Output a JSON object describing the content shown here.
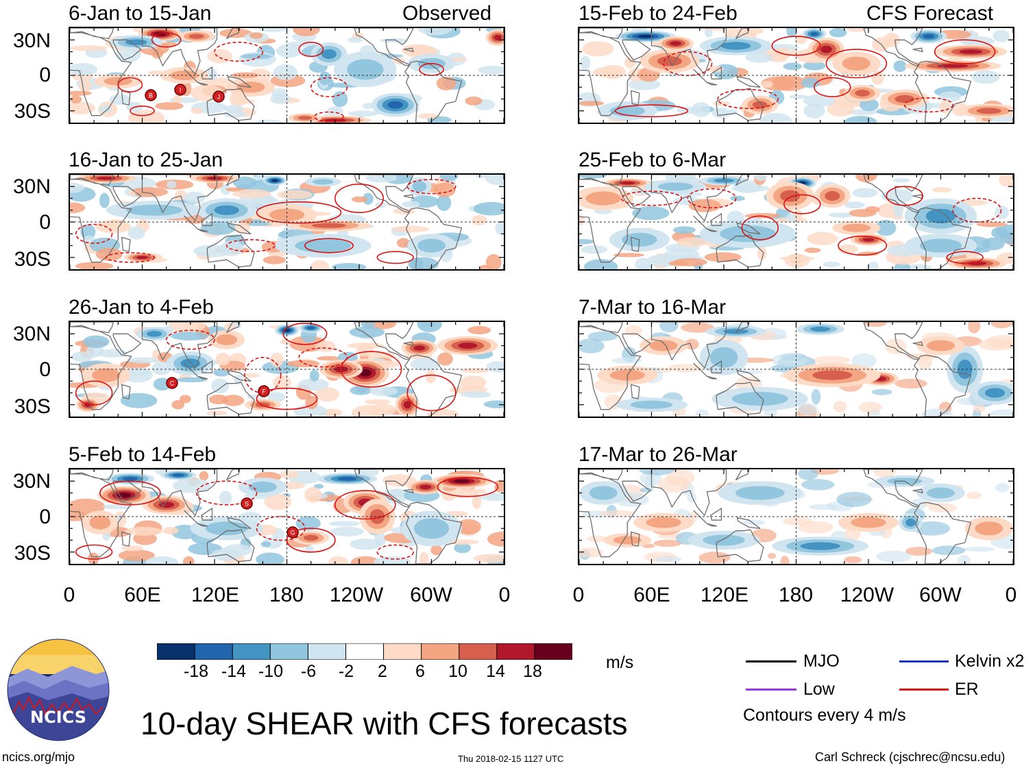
{
  "header": {
    "observed_label": "Observed",
    "forecast_label": "CFS Forecast"
  },
  "panels": [
    {
      "title": "6-Jan to 15-Jan",
      "kind": "observed"
    },
    {
      "title": "16-Jan to 25-Jan",
      "kind": "observed"
    },
    {
      "title": "26-Jan to 4-Feb",
      "kind": "observed"
    },
    {
      "title": "5-Feb to 14-Feb",
      "kind": "observed"
    },
    {
      "title": "15-Feb to 24-Feb",
      "kind": "forecast"
    },
    {
      "title": "25-Feb to 6-Mar",
      "kind": "forecast"
    },
    {
      "title": "7-Mar to 16-Mar",
      "kind": "forecast"
    },
    {
      "title": "17-Mar to 26-Mar",
      "kind": "forecast"
    }
  ],
  "axes": {
    "y_ticks": [
      "30N",
      "0",
      "30S"
    ],
    "x_ticks": [
      "0",
      "60E",
      "120E",
      "180",
      "120W",
      "60W",
      "0"
    ]
  },
  "storms": [
    {
      "panel": 0,
      "letter": "B"
    },
    {
      "panel": 0,
      "letter": "I"
    },
    {
      "panel": 0,
      "letter": "J"
    },
    {
      "panel": 2,
      "letter": "C"
    },
    {
      "panel": 2,
      "letter": "F"
    },
    {
      "panel": 3,
      "letter": "S"
    },
    {
      "panel": 3,
      "letter": "G"
    }
  ],
  "colorbar": {
    "labels": [
      "-18",
      "-14",
      "-10",
      "-6",
      "-2",
      "2",
      "6",
      "10",
      "14",
      "18"
    ],
    "colors": [
      "#08306b",
      "#2166ac",
      "#4393c3",
      "#92c5de",
      "#d1e5f0",
      "#ffffff",
      "#fddbc7",
      "#f4a582",
      "#d6604d",
      "#b2182b",
      "#67001f"
    ],
    "units": "m/s"
  },
  "legend": {
    "items": [
      {
        "label": "MJO",
        "color": "#000000"
      },
      {
        "label": "Kelvin x2",
        "color": "#1a33cc"
      },
      {
        "label": "Low",
        "color": "#9933ee"
      },
      {
        "label": "ER",
        "color": "#dd1111"
      }
    ],
    "note": "Contours every 4 m/s"
  },
  "title": "10-day SHEAR with CFS forecasts",
  "logo_text": "NCICS",
  "footer": {
    "url": "ncics.org/mjo",
    "timestamp": "Thu 2018-02-15 1127 UTC",
    "credit": "Carl Schreck (cjschrec@ncsu.edu)"
  }
}
